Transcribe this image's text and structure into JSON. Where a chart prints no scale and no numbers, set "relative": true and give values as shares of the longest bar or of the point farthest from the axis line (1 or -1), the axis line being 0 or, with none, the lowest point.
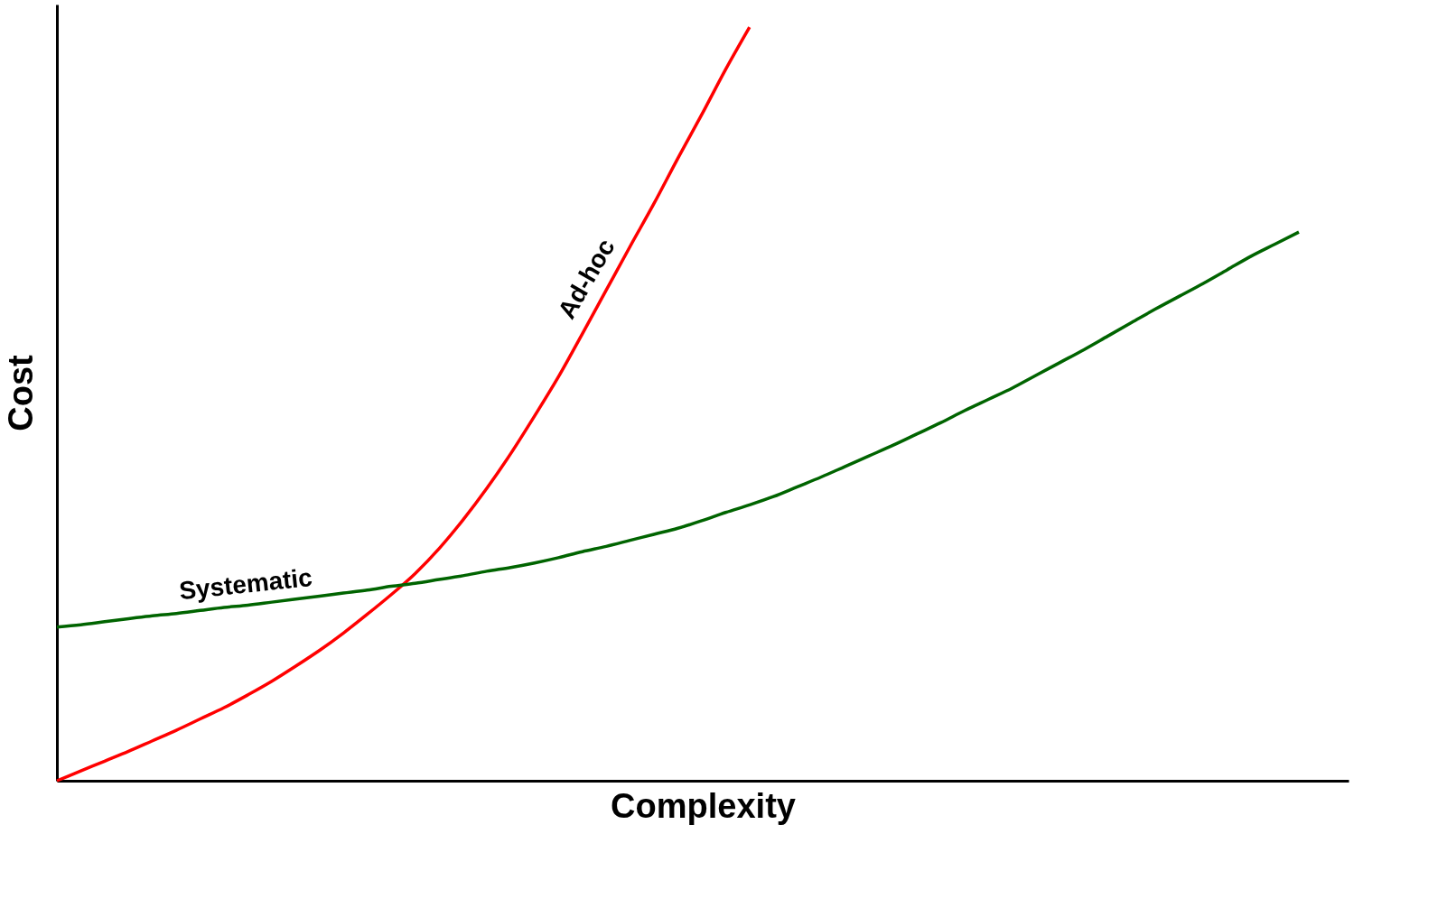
{
  "chart_data": {
    "type": "line",
    "relative": true,
    "xlabel": "Complexity",
    "ylabel": "Cost",
    "categories": [
      null,
      null,
      null,
      null,
      null,
      null,
      null,
      null,
      null,
      null,
      null,
      null,
      null,
      null,
      null,
      null,
      null,
      null,
      null,
      null,
      null,
      null,
      null,
      null,
      null,
      null,
      null,
      null,
      null,
      null,
      null,
      null,
      null,
      null,
      null,
      null,
      null,
      null,
      null,
      null,
      null,
      null,
      null,
      null,
      null,
      null,
      null,
      null,
      null,
      null,
      null,
      null,
      null
    ],
    "series": [
      {
        "name": "Ad-hoc",
        "color": "#ff0000",
        "values": [
          0,
          0.013,
          0.026,
          0.039,
          0.053,
          0.067,
          0.082,
          0.097,
          0.114,
          0.132,
          0.152,
          0.173,
          0.196,
          0.221,
          0.247,
          0.275,
          0.308,
          0.346,
          0.388,
          0.434,
          0.484,
          0.536,
          0.593,
          0.651,
          0.709,
          0.766,
          0.826,
          0.884,
          0.944,
          1,
          null,
          null,
          null,
          null,
          null,
          null,
          null,
          null,
          null,
          null,
          null,
          null,
          null,
          null,
          null,
          null,
          null,
          null,
          null,
          null,
          null,
          null,
          null
        ]
      },
      {
        "name": "Systematic",
        "color": "#006400",
        "values": [
          0.204,
          0.207,
          0.211,
          0.215,
          0.219,
          0.222,
          0.226,
          0.23,
          0.233,
          0.237,
          0.241,
          0.245,
          0.249,
          0.253,
          0.258,
          0.262,
          0.267,
          0.272,
          0.278,
          0.283,
          0.289,
          0.296,
          0.304,
          0.311,
          0.319,
          0.327,
          0.335,
          0.345,
          0.356,
          0.366,
          0.377,
          0.39,
          0.403,
          0.417,
          0.431,
          0.445,
          0.46,
          0.475,
          0.491,
          0.506,
          0.521,
          0.538,
          0.555,
          0.572,
          0.59,
          0.608,
          0.626,
          0.643,
          0.66,
          0.678,
          0.696,
          0.712,
          0.728
        ]
      }
    ]
  }
}
